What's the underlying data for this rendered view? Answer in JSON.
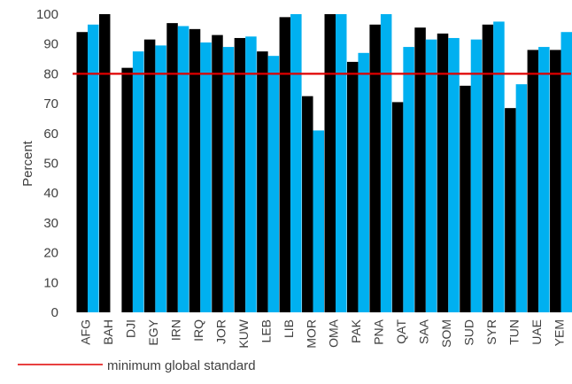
{
  "chart_data": {
    "type": "bar",
    "title": "",
    "xlabel": "",
    "ylabel": "Percent",
    "ylim": [
      0,
      100
    ],
    "yticks": [
      0,
      10,
      20,
      30,
      40,
      50,
      60,
      70,
      80,
      90,
      100
    ],
    "grid": false,
    "categories": [
      "AFG",
      "BAH",
      "DJI",
      "EGY",
      "IRN",
      "IRQ",
      "JOR",
      "KUW",
      "LEB",
      "LIB",
      "MOR",
      "OMA",
      "PAK",
      "PNA",
      "QAT",
      "SAA",
      "SOM",
      "SUD",
      "SYR",
      "TUN",
      "UAE",
      "YEM"
    ],
    "series": [
      {
        "color": "#000000",
        "values": [
          94,
          100,
          82,
          91.5,
          97,
          95,
          93,
          92,
          87.5,
          99,
          72.5,
          100,
          84,
          96.5,
          70.5,
          95.5,
          93.5,
          76,
          96.5,
          68.5,
          88,
          88
        ]
      },
      {
        "color": "#00B0F0",
        "values": [
          96.5,
          null,
          87.5,
          89.5,
          96,
          90.5,
          89,
          92.5,
          86,
          100,
          61,
          100,
          87,
          100,
          89,
          91.5,
          92,
          91.5,
          97.5,
          76.5,
          89,
          94
        ]
      }
    ],
    "reference_line": {
      "value": 80,
      "color": "#E00000",
      "label": "minimum global standard"
    }
  }
}
